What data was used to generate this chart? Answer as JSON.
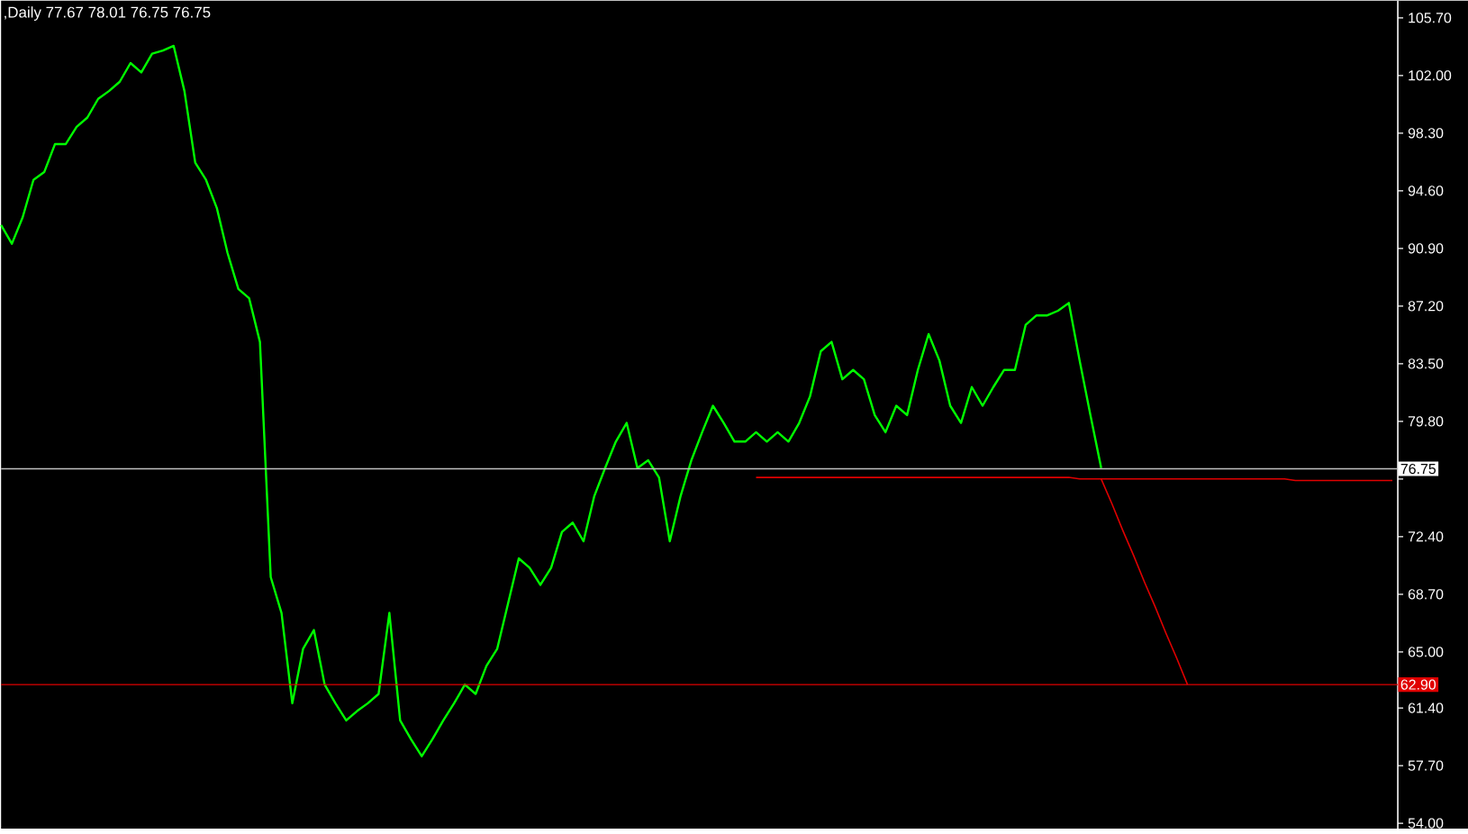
{
  "chart_data": {
    "type": "line",
    "title": ",Daily 77.67 78.01 76.75 76.75",
    "categories": [
      null,
      null,
      null,
      null,
      null,
      null,
      null,
      null,
      null,
      null,
      null,
      null,
      null,
      null,
      null,
      null,
      null,
      null,
      null,
      null,
      null,
      null,
      null,
      null,
      null,
      null,
      null,
      null,
      null,
      null,
      null,
      null,
      null,
      null,
      null,
      null,
      null,
      null,
      null,
      null,
      null,
      null,
      null,
      null,
      null,
      null,
      null,
      null,
      null,
      null,
      null,
      null,
      null,
      null,
      null,
      null,
      null,
      null,
      null,
      null,
      null,
      null,
      null,
      null,
      null,
      null,
      null,
      null,
      null,
      null,
      null,
      null,
      null,
      null,
      null,
      null,
      null,
      null,
      null,
      null,
      null,
      null,
      null,
      null,
      null,
      null,
      null,
      null,
      null,
      null,
      null,
      null,
      null,
      null,
      null,
      null,
      null,
      null,
      null,
      null,
      null,
      null,
      null,
      null,
      null,
      null,
      null,
      null,
      null,
      null,
      null,
      null,
      null,
      null,
      null,
      null,
      null,
      null,
      null,
      null,
      null,
      null,
      null,
      null,
      null,
      null,
      null,
      null,
      null,
      null
    ],
    "series": [
      {
        "color": "#00ff00",
        "values": [
          92.4,
          91.2,
          92.9,
          95.3,
          95.8,
          97.6,
          97.6,
          98.7,
          99.3,
          100.5,
          101.0,
          101.6,
          102.8,
          102.2,
          103.4,
          103.6,
          103.9,
          101.0,
          96.4,
          95.3,
          93.5,
          90.6,
          88.3,
          87.7,
          84.9,
          69.8,
          67.5,
          61.7,
          65.2,
          66.4,
          62.9,
          61.7,
          60.6,
          61.2,
          61.7,
          62.3,
          67.5,
          60.6,
          59.4,
          58.3,
          59.4,
          60.6,
          61.7,
          62.9,
          62.3,
          64.1,
          65.2,
          68.1,
          71.0,
          70.4,
          69.3,
          70.4,
          72.7,
          73.3,
          72.1,
          75.0,
          76.8,
          78.5,
          79.7,
          76.8,
          77.3,
          76.2,
          72.1,
          75.0,
          77.3,
          79.1,
          80.8,
          79.7,
          78.5,
          78.5,
          79.1,
          78.5,
          79.1,
          78.5,
          79.7,
          81.4,
          84.3,
          84.9,
          82.5,
          83.1,
          82.5,
          80.2,
          79.1,
          80.8,
          80.2,
          83.1,
          85.4,
          83.7,
          80.8,
          79.7,
          82.0,
          80.8,
          82.0,
          83.1,
          83.1,
          86.0,
          86.6,
          86.6,
          86.9,
          87.4,
          83.7,
          80.2,
          76.8,
          null,
          null,
          null,
          null,
          null,
          null,
          null,
          null,
          null,
          null,
          null,
          null,
          null,
          null,
          null,
          null,
          null,
          null,
          null,
          null,
          null,
          null,
          null,
          null,
          null,
          null,
          null
        ]
      },
      {
        "color": "#e00000",
        "values": [
          null,
          null,
          null,
          null,
          null,
          null,
          null,
          null,
          null,
          null,
          null,
          null,
          null,
          null,
          null,
          null,
          null,
          null,
          null,
          null,
          null,
          null,
          null,
          null,
          null,
          null,
          null,
          null,
          null,
          null,
          null,
          null,
          null,
          null,
          null,
          null,
          null,
          null,
          null,
          null,
          null,
          null,
          null,
          null,
          null,
          null,
          null,
          null,
          null,
          null,
          null,
          null,
          null,
          null,
          null,
          null,
          null,
          null,
          null,
          null,
          null,
          null,
          null,
          null,
          null,
          null,
          null,
          null,
          null,
          null,
          76.2,
          76.2,
          76.2,
          76.2,
          76.2,
          76.2,
          76.2,
          76.2,
          76.2,
          76.2,
          76.2,
          76.2,
          76.2,
          76.2,
          76.2,
          76.2,
          76.2,
          76.2,
          76.2,
          76.2,
          76.2,
          76.2,
          76.2,
          76.2,
          76.2,
          76.2,
          76.2,
          76.2,
          76.2,
          76.2,
          76.1,
          76.1,
          76.1,
          76.1,
          76.1,
          76.1,
          76.1,
          76.1,
          76.1,
          76.1,
          76.1,
          76.1,
          76.1,
          76.1,
          76.1,
          76.1,
          76.1,
          76.1,
          76.1,
          76.1,
          76.0,
          76.0,
          76.0,
          76.0,
          76.0,
          76.0,
          76.0,
          76.0,
          76.0,
          76.0
        ]
      },
      {
        "color": "#e00000",
        "values": [
          null,
          null,
          null,
          null,
          null,
          null,
          null,
          null,
          null,
          null,
          null,
          null,
          null,
          null,
          null,
          null,
          null,
          null,
          null,
          null,
          null,
          null,
          null,
          null,
          null,
          null,
          null,
          null,
          null,
          null,
          null,
          null,
          null,
          null,
          null,
          null,
          null,
          null,
          null,
          null,
          null,
          null,
          null,
          null,
          null,
          null,
          null,
          null,
          null,
          null,
          null,
          null,
          null,
          null,
          null,
          null,
          null,
          null,
          null,
          null,
          null,
          null,
          null,
          null,
          null,
          null,
          null,
          null,
          null,
          null,
          null,
          null,
          null,
          null,
          null,
          null,
          null,
          null,
          null,
          null,
          null,
          null,
          null,
          null,
          null,
          null,
          null,
          null,
          null,
          null,
          null,
          null,
          null,
          null,
          null,
          null,
          null,
          null,
          null,
          null,
          null,
          null,
          76.1,
          74.5,
          72.8,
          71.2,
          69.5,
          67.9,
          66.2,
          64.6,
          62.9,
          null,
          null,
          null,
          null,
          null,
          null,
          null,
          null,
          null,
          null,
          null,
          null,
          null,
          null,
          null,
          null,
          null,
          null,
          null
        ]
      }
    ],
    "ylim": [
      53.65,
      106.8
    ],
    "yticks": [
      {
        "value": 54.0,
        "label": "54.00"
      },
      {
        "value": 57.7,
        "label": "57.70"
      },
      {
        "value": 61.4,
        "label": "61.40"
      },
      {
        "value": 65.0,
        "label": "65.00"
      },
      {
        "value": 68.7,
        "label": "68.70"
      },
      {
        "value": 72.4,
        "label": "72.40"
      },
      {
        "value": 76.1,
        "label": null
      },
      {
        "value": 79.8,
        "label": "79.80"
      },
      {
        "value": 83.5,
        "label": "83.50"
      },
      {
        "value": 87.2,
        "label": "87.20"
      },
      {
        "value": 90.9,
        "label": "90.90"
      },
      {
        "value": 94.6,
        "label": "94.60"
      },
      {
        "value": 98.3,
        "label": "98.30"
      },
      {
        "value": 102.0,
        "label": "102.00"
      },
      {
        "value": 105.7,
        "label": "105.70"
      }
    ],
    "ref_lines": [
      {
        "axis": "y",
        "value": 76.75,
        "label": "76.75",
        "color": "#c0c0c0"
      },
      {
        "axis": "y",
        "value": 62.9,
        "label": "62.90",
        "color": "#e00000"
      }
    ],
    "tick_labels": "y"
  }
}
